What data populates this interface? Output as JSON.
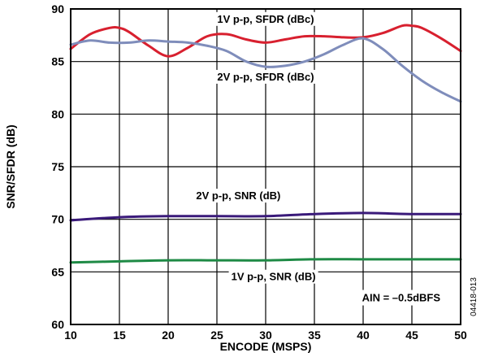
{
  "chart_data": {
    "type": "line",
    "title": "",
    "xlabel": "ENCODE (MSPS)",
    "ylabel": "SNR/SFDR (dB)",
    "xlim": [
      10,
      50
    ],
    "ylim": [
      60,
      90
    ],
    "xticks": [
      10,
      15,
      20,
      25,
      30,
      35,
      40,
      45,
      50
    ],
    "yticks": [
      60,
      65,
      70,
      75,
      80,
      85,
      90
    ],
    "grid": true,
    "legend": "none",
    "series": [
      {
        "name": "1V p-p, SFDR (dBc)",
        "color": "#d8202f",
        "x": [
          10,
          12,
          14,
          15,
          16,
          18,
          20,
          22,
          24,
          26,
          28,
          30,
          32,
          34,
          36,
          38,
          40,
          42,
          44,
          45,
          46,
          48,
          50
        ],
        "y": [
          86.2,
          87.6,
          88.2,
          88.2,
          87.8,
          86.5,
          85.5,
          86.3,
          87.4,
          87.6,
          87.1,
          86.8,
          87.1,
          87.4,
          87.4,
          87.3,
          87.3,
          87.7,
          88.4,
          88.4,
          88.2,
          87.2,
          86.0
        ]
      },
      {
        "name": "2V p-p, SFDR (dBc)",
        "color": "#7f8dbb",
        "x": [
          10,
          12,
          14,
          16,
          18,
          20,
          22,
          24,
          26,
          28,
          30,
          32,
          34,
          36,
          38,
          40,
          42,
          44,
          46,
          48,
          50
        ],
        "y": [
          86.6,
          87.0,
          86.8,
          86.8,
          87.0,
          86.9,
          86.8,
          86.5,
          86.0,
          85.0,
          84.5,
          84.6,
          85.0,
          85.7,
          86.6,
          87.2,
          86.2,
          84.6,
          83.2,
          82.1,
          81.2
        ]
      },
      {
        "name": "2V p-p, SNR (dB)",
        "color": "#3a1a7a",
        "x": [
          10,
          15,
          20,
          25,
          30,
          35,
          40,
          45,
          50
        ],
        "y": [
          69.9,
          70.2,
          70.3,
          70.3,
          70.3,
          70.5,
          70.6,
          70.5,
          70.5
        ]
      },
      {
        "name": "1V p-p, SNR (dB)",
        "color": "#1e8a45",
        "x": [
          10,
          15,
          20,
          25,
          30,
          35,
          40,
          45,
          50
        ],
        "y": [
          65.9,
          66.0,
          66.1,
          66.1,
          66.1,
          66.2,
          66.2,
          66.2,
          66.2
        ]
      }
    ],
    "annotations": {
      "ain": "AIN = –0.5dBFS",
      "figure_id": "04418-013"
    }
  }
}
